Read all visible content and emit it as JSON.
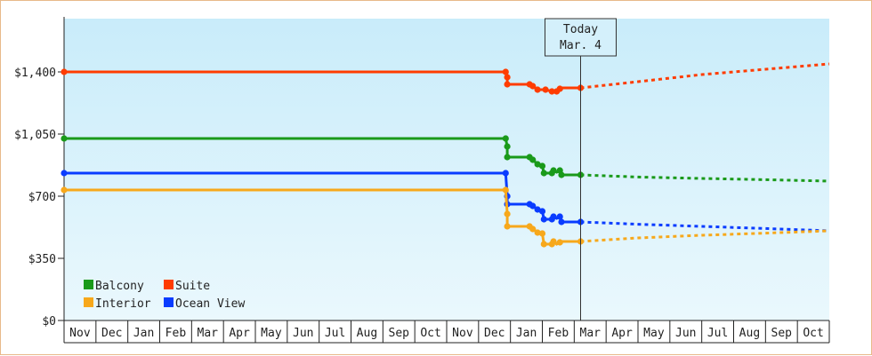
{
  "chart_data": {
    "type": "line",
    "y_ticks": [
      "$1,400",
      "$1,050",
      "$700",
      "$350",
      "$0"
    ],
    "y_tick_values": [
      1400,
      1050,
      700,
      350,
      0
    ],
    "ylim": [
      0,
      1700
    ],
    "month_labels": [
      "Nov",
      "Dec",
      "Jan",
      "Feb",
      "Mar",
      "Apr",
      "May",
      "Jun",
      "Jul",
      "Aug",
      "Sep",
      "Oct",
      "Nov",
      "Dec",
      "Jan",
      "Feb",
      "Mar",
      "Apr",
      "May",
      "Jun",
      "Jul",
      "Aug",
      "Sep",
      "Oct"
    ],
    "today": {
      "line1": "Today",
      "line2": "Mar. 4",
      "x": 16.2
    },
    "x_range": [
      0,
      24
    ],
    "colors": {
      "Balcony": "#1a9a1a",
      "Suite": "#ff3c00",
      "Interior": "#f7a81b",
      "Ocean View": "#0a3cff"
    },
    "legend": [
      "Balcony",
      "Suite",
      "Interior",
      "Ocean View"
    ],
    "series": [
      {
        "name": "Suite",
        "solid": [
          [
            0,
            1400
          ],
          [
            13.85,
            1400
          ],
          [
            13.9,
            1370
          ],
          [
            13.9,
            1330
          ],
          [
            14.6,
            1330
          ],
          [
            14.7,
            1320
          ],
          [
            14.85,
            1300
          ],
          [
            15.1,
            1300
          ],
          [
            15.3,
            1290
          ],
          [
            15.45,
            1290
          ],
          [
            15.55,
            1305
          ],
          [
            15.6,
            1310
          ],
          [
            16.2,
            1310
          ]
        ],
        "markers": [
          [
            0,
            1400
          ],
          [
            13.85,
            1400
          ],
          [
            13.9,
            1370
          ],
          [
            13.9,
            1330
          ],
          [
            14.6,
            1330
          ],
          [
            14.7,
            1320
          ],
          [
            14.85,
            1300
          ],
          [
            15.1,
            1300
          ],
          [
            15.3,
            1290
          ],
          [
            15.45,
            1290
          ],
          [
            15.55,
            1305
          ],
          [
            16.2,
            1310
          ]
        ],
        "forecast": [
          [
            16.2,
            1310
          ],
          [
            18,
            1345
          ],
          [
            20,
            1385
          ],
          [
            22,
            1415
          ],
          [
            24,
            1445
          ]
        ]
      },
      {
        "name": "Balcony",
        "solid": [
          [
            0,
            1025
          ],
          [
            13.85,
            1025
          ],
          [
            13.9,
            980
          ],
          [
            13.9,
            920
          ],
          [
            14.6,
            920
          ],
          [
            14.7,
            905
          ],
          [
            14.85,
            880
          ],
          [
            15.0,
            870
          ],
          [
            15.05,
            830
          ],
          [
            15.3,
            830
          ],
          [
            15.35,
            845
          ],
          [
            15.45,
            835
          ],
          [
            15.55,
            845
          ],
          [
            15.6,
            820
          ],
          [
            16.2,
            820
          ]
        ],
        "markers": [
          [
            0,
            1025
          ],
          [
            13.85,
            1025
          ],
          [
            13.9,
            980
          ],
          [
            13.9,
            920
          ],
          [
            14.6,
            920
          ],
          [
            14.7,
            905
          ],
          [
            14.85,
            880
          ],
          [
            15.0,
            870
          ],
          [
            15.05,
            830
          ],
          [
            15.3,
            830
          ],
          [
            15.35,
            845
          ],
          [
            15.55,
            845
          ],
          [
            15.6,
            820
          ],
          [
            16.2,
            820
          ]
        ],
        "forecast": [
          [
            16.2,
            820
          ],
          [
            18,
            808
          ],
          [
            20,
            800
          ],
          [
            22,
            793
          ],
          [
            24,
            785
          ]
        ]
      },
      {
        "name": "Ocean View",
        "solid": [
          [
            0,
            830
          ],
          [
            13.85,
            830
          ],
          [
            13.9,
            700
          ],
          [
            13.9,
            655
          ],
          [
            14.6,
            655
          ],
          [
            14.7,
            645
          ],
          [
            14.85,
            625
          ],
          [
            15.0,
            615
          ],
          [
            15.05,
            570
          ],
          [
            15.3,
            570
          ],
          [
            15.35,
            585
          ],
          [
            15.45,
            575
          ],
          [
            15.55,
            585
          ],
          [
            15.6,
            555
          ],
          [
            16.2,
            555
          ]
        ],
        "markers": [
          [
            0,
            830
          ],
          [
            13.85,
            830
          ],
          [
            13.9,
            700
          ],
          [
            13.9,
            655
          ],
          [
            14.6,
            655
          ],
          [
            14.7,
            645
          ],
          [
            14.85,
            625
          ],
          [
            15.0,
            615
          ],
          [
            15.05,
            570
          ],
          [
            15.3,
            570
          ],
          [
            15.35,
            585
          ],
          [
            15.55,
            585
          ],
          [
            15.6,
            555
          ],
          [
            16.2,
            555
          ]
        ],
        "forecast": [
          [
            16.2,
            555
          ],
          [
            18,
            542
          ],
          [
            20,
            530
          ],
          [
            22,
            518
          ],
          [
            24,
            505
          ]
        ]
      },
      {
        "name": "Interior",
        "solid": [
          [
            0,
            735
          ],
          [
            13.85,
            735
          ],
          [
            13.9,
            600
          ],
          [
            13.9,
            530
          ],
          [
            14.6,
            530
          ],
          [
            14.7,
            515
          ],
          [
            14.85,
            495
          ],
          [
            15.0,
            490
          ],
          [
            15.05,
            430
          ],
          [
            15.3,
            430
          ],
          [
            15.35,
            445
          ],
          [
            15.45,
            430
          ],
          [
            15.55,
            440
          ],
          [
            15.6,
            445
          ],
          [
            16.2,
            445
          ]
        ],
        "markers": [
          [
            0,
            735
          ],
          [
            13.85,
            735
          ],
          [
            13.9,
            600
          ],
          [
            13.9,
            530
          ],
          [
            14.6,
            530
          ],
          [
            14.7,
            515
          ],
          [
            14.85,
            495
          ],
          [
            15.0,
            490
          ],
          [
            15.05,
            430
          ],
          [
            15.3,
            430
          ],
          [
            15.35,
            445
          ],
          [
            15.55,
            440
          ],
          [
            16.2,
            445
          ]
        ],
        "forecast": [
          [
            16.2,
            445
          ],
          [
            18,
            465
          ],
          [
            20,
            480
          ],
          [
            22,
            492
          ],
          [
            24,
            505
          ]
        ]
      }
    ]
  }
}
